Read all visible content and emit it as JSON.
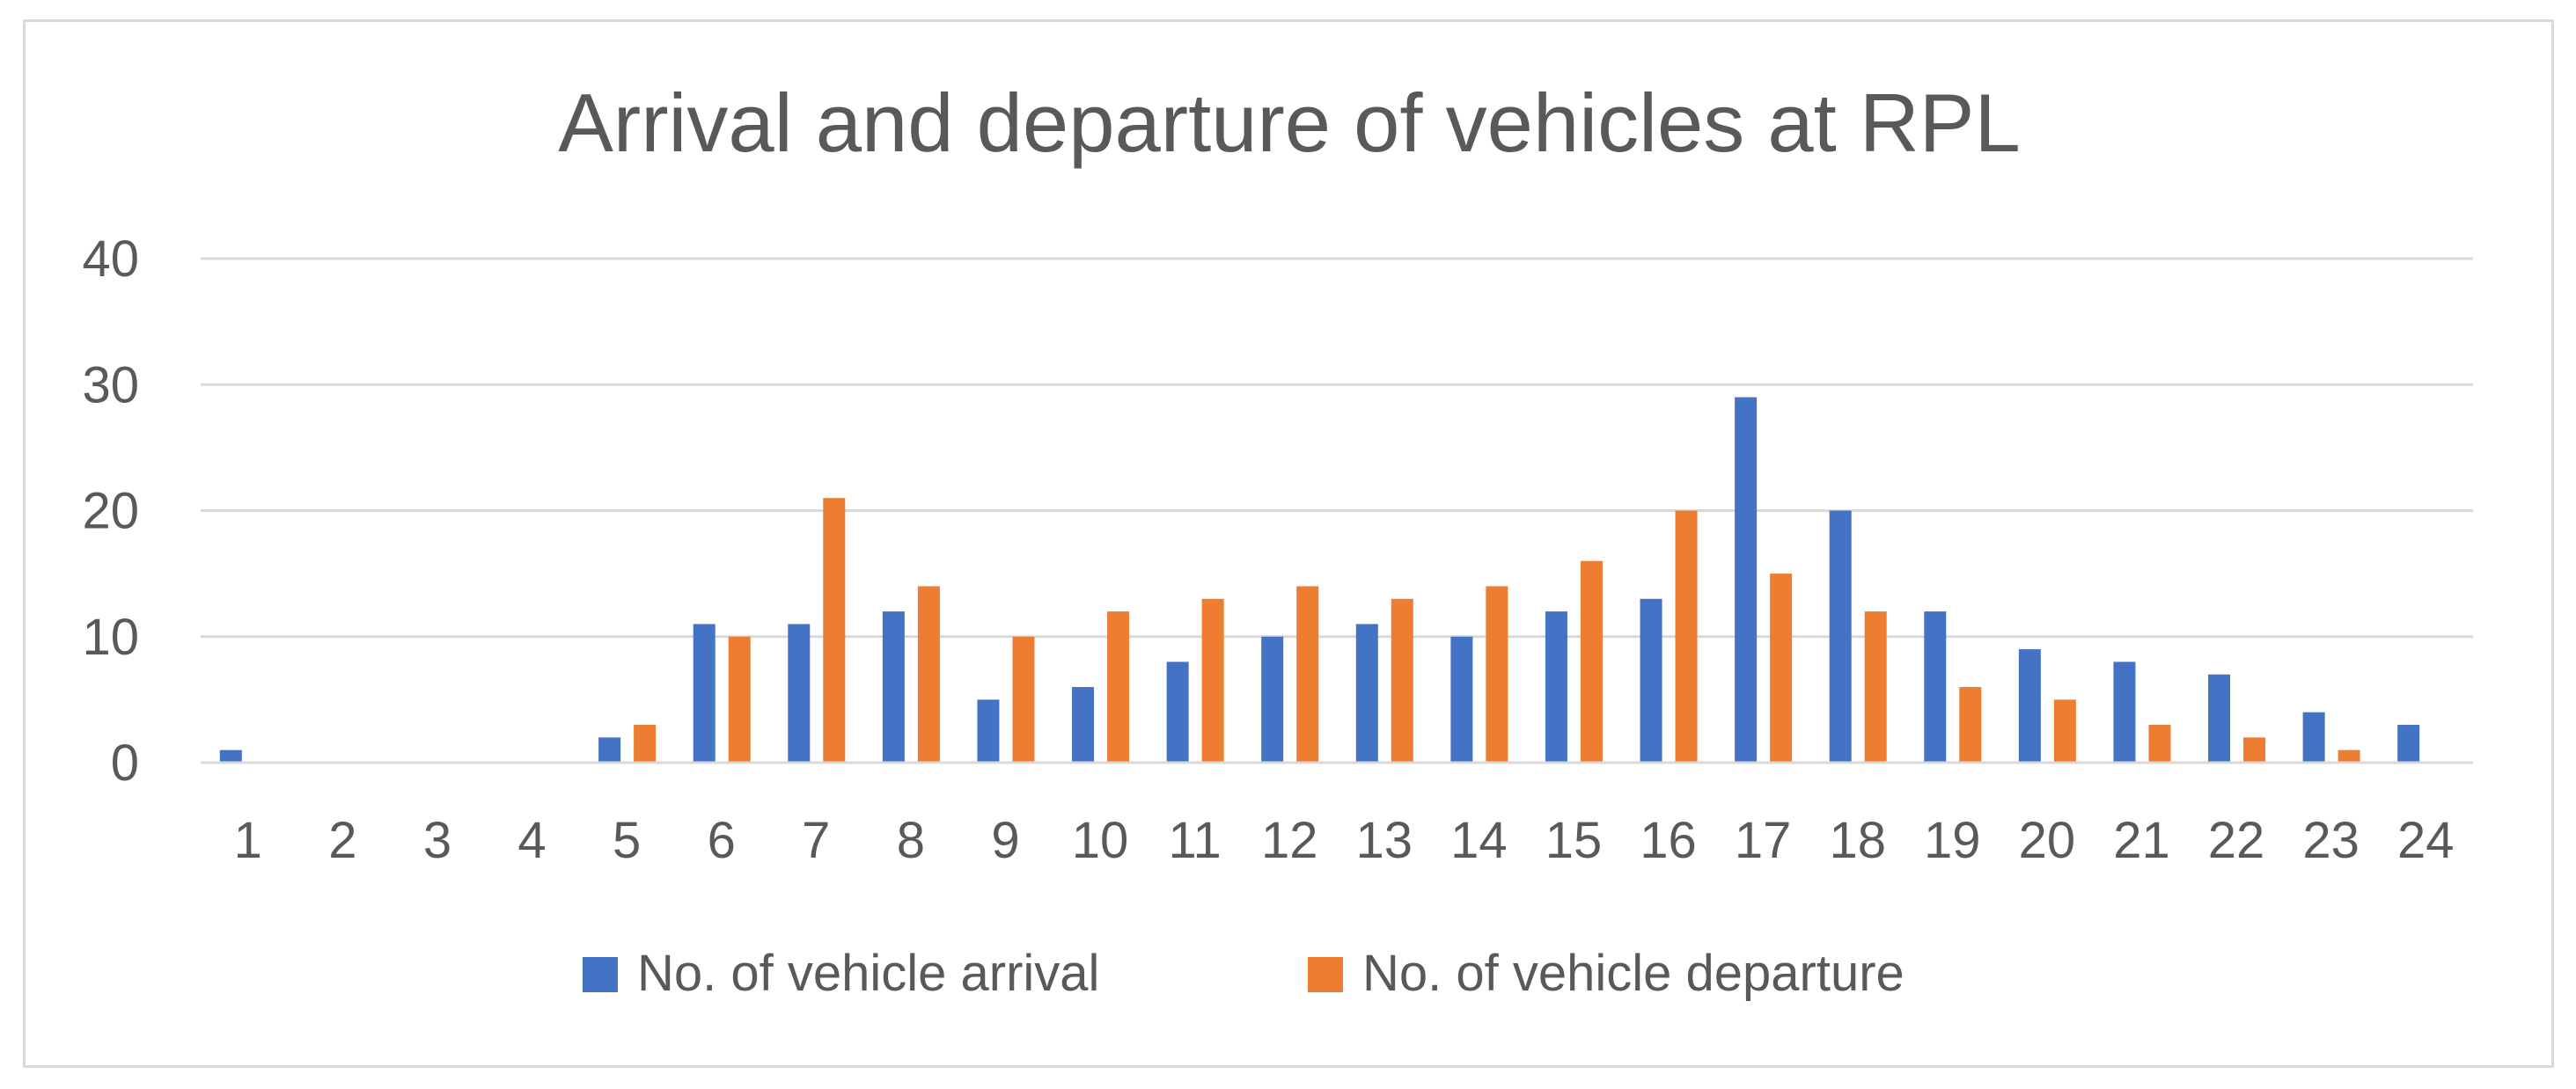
{
  "chart_data": {
    "type": "bar",
    "title": "Arrival and departure of vehicles at RPL",
    "xlabel": "",
    "ylabel": "",
    "categories": [
      "1",
      "2",
      "3",
      "4",
      "5",
      "6",
      "7",
      "8",
      "9",
      "10",
      "11",
      "12",
      "13",
      "14",
      "15",
      "16",
      "17",
      "18",
      "19",
      "20",
      "21",
      "22",
      "23",
      "24"
    ],
    "series": [
      {
        "name": "No. of vehicle arrival",
        "color": "#4472c4",
        "values": [
          1,
          0,
          0,
          0,
          2,
          11,
          11,
          12,
          5,
          6,
          8,
          10,
          11,
          10,
          12,
          13,
          29,
          20,
          12,
          9,
          8,
          7,
          4,
          3
        ]
      },
      {
        "name": "No. of vehicle departure",
        "color": "#ed7d31",
        "values": [
          0,
          0,
          0,
          0,
          3,
          10,
          21,
          14,
          10,
          12,
          13,
          14,
          13,
          14,
          16,
          20,
          15,
          12,
          6,
          5,
          3,
          2,
          1,
          0
        ]
      }
    ],
    "ylim": [
      0,
      40
    ],
    "yticks": [
      0,
      10,
      20,
      30,
      40
    ],
    "grid": true,
    "legend": "bottom"
  }
}
